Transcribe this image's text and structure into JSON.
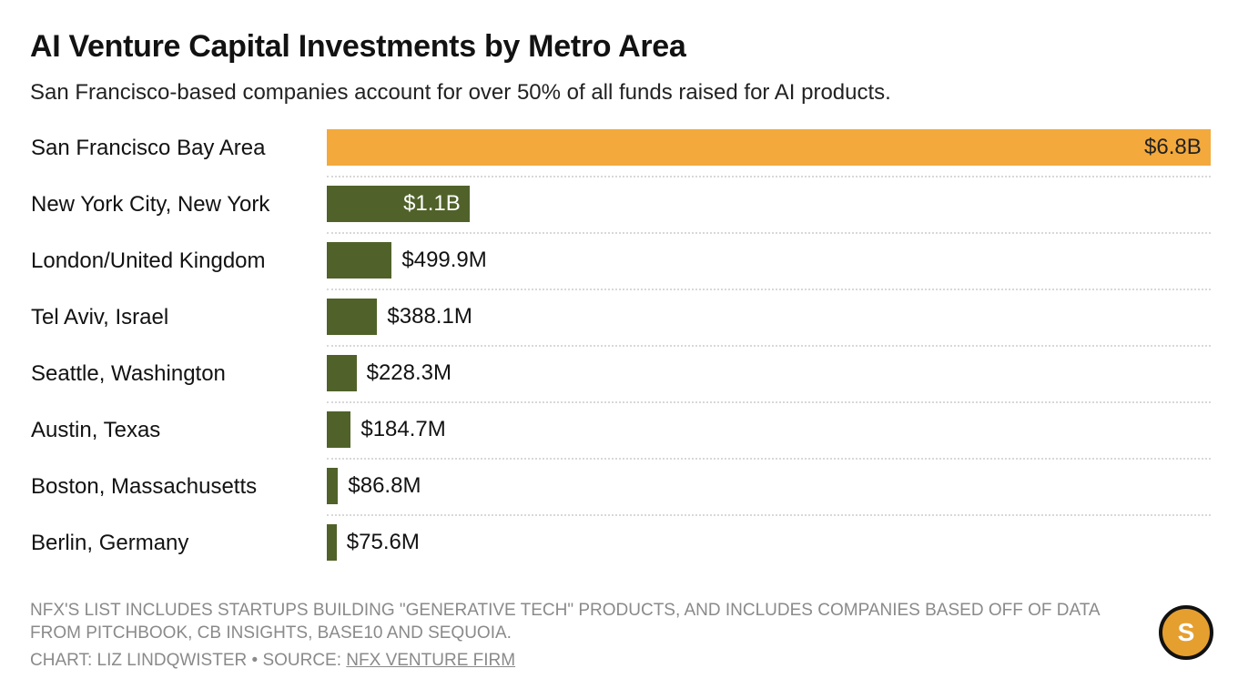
{
  "chart_data": {
    "type": "bar",
    "orientation": "horizontal",
    "title": "AI Venture Capital Investments by Metro Area",
    "subtitle": "San Francisco-based companies account for over 50% of all funds raised for AI products.",
    "unit": "USD millions",
    "xlim": [
      0,
      6800
    ],
    "categories": [
      "San Francisco Bay Area",
      "New York City, New York",
      "London/United Kingdom",
      "Tel Aviv, Israel",
      "Seattle, Washington",
      "Austin, Texas",
      "Boston, Massachusetts",
      "Berlin, Germany"
    ],
    "values": [
      6800,
      1100,
      499.9,
      388.1,
      228.3,
      184.7,
      86.8,
      75.6
    ],
    "labels": [
      "$6.8B",
      "$1.1B",
      "$499.9M",
      "$388.1M",
      "$228.3M",
      "$184.7M",
      "$86.8M",
      "$75.6M"
    ],
    "colors": [
      "#f3a93c",
      "#506229",
      "#506229",
      "#506229",
      "#506229",
      "#506229",
      "#506229",
      "#506229"
    ],
    "label_colors": [
      "#222222",
      "#ffffff",
      "#121212",
      "#121212",
      "#121212",
      "#121212",
      "#121212",
      "#121212"
    ]
  },
  "footer": {
    "note": "NFX'S LIST INCLUDES STARTUPS BUILDING \"GENERATIVE TECH\" PRODUCTS, AND INCLUDES COMPANIES BASED OFF OF DATA FROM PITCHBOOK, CB INSIGHTS, BASE10 AND SEQUOIA.",
    "credit_prefix": "CHART: LIZ LINDQWISTER • SOURCE: ",
    "source_link": "NFX VENTURE FIRM",
    "logo_letter": "S"
  }
}
